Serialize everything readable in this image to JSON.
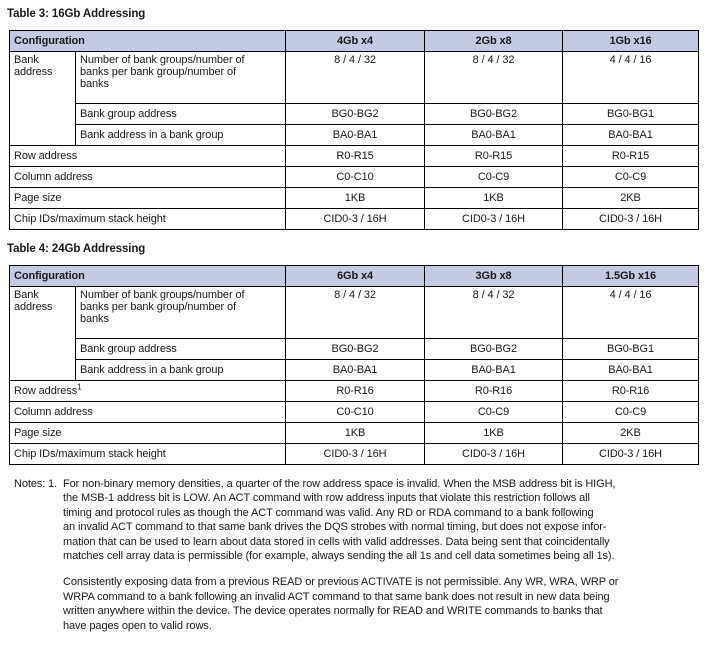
{
  "colors": {
    "header_bg": "#c5cae4",
    "border": "#000000",
    "text": "#1a1a1a"
  },
  "table3": {
    "title": "Table 3: 16Gb Addressing",
    "headers": [
      "Configuration",
      "4Gb x4",
      "2Gb x8",
      "1Gb x16"
    ],
    "bank_label": "Bank address",
    "bank_rows": [
      {
        "label": "Number of bank groups/number of\nbanks per bank group/number of\nbanks",
        "values": [
          "8 / 4 / 32",
          "8 / 4 / 32",
          "4 / 4 / 16"
        ]
      },
      {
        "label": "Bank group address",
        "values": [
          "BG0-BG2",
          "BG0-BG2",
          "BG0-BG1"
        ]
      },
      {
        "label": "Bank address in a bank group",
        "values": [
          "BA0-BA1",
          "BA0-BA1",
          "BA0-BA1"
        ]
      }
    ],
    "rows": [
      {
        "label": "Row address",
        "sup": "",
        "values": [
          "R0-R15",
          "R0-R15",
          "R0-R15"
        ]
      },
      {
        "label": "Column address",
        "sup": "",
        "values": [
          "C0-C10",
          "C0-C9",
          "C0-C9"
        ]
      },
      {
        "label": "Page size",
        "sup": "",
        "values": [
          "1KB",
          "1KB",
          "2KB"
        ]
      },
      {
        "label": "Chip IDs/maximum stack height",
        "sup": "",
        "values": [
          "CID0-3 / 16H",
          "CID0-3 / 16H",
          "CID0-3 / 16H"
        ]
      }
    ]
  },
  "table4": {
    "title": "Table 4: 24Gb Addressing",
    "headers": [
      "Configuration",
      "6Gb x4",
      "3Gb x8",
      "1.5Gb x16"
    ],
    "bank_label": "Bank address",
    "bank_rows": [
      {
        "label": "Number of bank groups/number of\nbanks per bank group/number of\nbanks",
        "values": [
          "8 / 4 / 32",
          "8 / 4 / 32",
          "4 / 4 / 16"
        ]
      },
      {
        "label": "Bank group address",
        "values": [
          "BG0-BG2",
          "BG0-BG2",
          "BG0-BG1"
        ]
      },
      {
        "label": "Bank address in a bank group",
        "values": [
          "BA0-BA1",
          "BA0-BA1",
          "BA0-BA1"
        ]
      }
    ],
    "rows": [
      {
        "label": "Row address",
        "sup": "1",
        "values": [
          "R0-R16",
          "R0-R16",
          "R0-R16"
        ]
      },
      {
        "label": "Column address",
        "sup": "",
        "values": [
          "C0-C10",
          "C0-C9",
          "C0-C9"
        ]
      },
      {
        "label": "Page size",
        "sup": "",
        "values": [
          "1KB",
          "1KB",
          "2KB"
        ]
      },
      {
        "label": "Chip IDs/maximum stack height",
        "sup": "",
        "values": [
          "CID0-3 / 16H",
          "CID0-3 / 16H",
          "CID0-3 / 16H"
        ]
      }
    ]
  },
  "notes": {
    "label": "Notes:",
    "number": "1.",
    "para1": "For non-binary memory densities, a quarter of the row address space is invalid. When the MSB address bit is HIGH,\nthe MSB-1 address bit is LOW. An ACT command with row address inputs that violate this restriction follows all\ntiming and protocol rules as though the ACT command was valid. Any RD or RDA command to a bank following\nan invalid ACT command to that same bank drives the DQS strobes with normal timing, but does not expose infor-\nmation that can be used to learn about data stored in cells with valid addresses. Data being sent that coincidentally\nmatches cell array data is permissible (for example, always sending the all 1s and cell data sometimes being all 1s).",
    "para2": "Consistently exposing data from a previous READ or previous ACTIVATE is not permissible. Any WR, WRA, WRP or\nWRPA command to a bank following an invalid ACT command to that same bank does not result in new data being\nwritten anywhere within the device. The device operates normally for READ and WRITE commands to banks that\nhave pages open to valid rows."
  }
}
